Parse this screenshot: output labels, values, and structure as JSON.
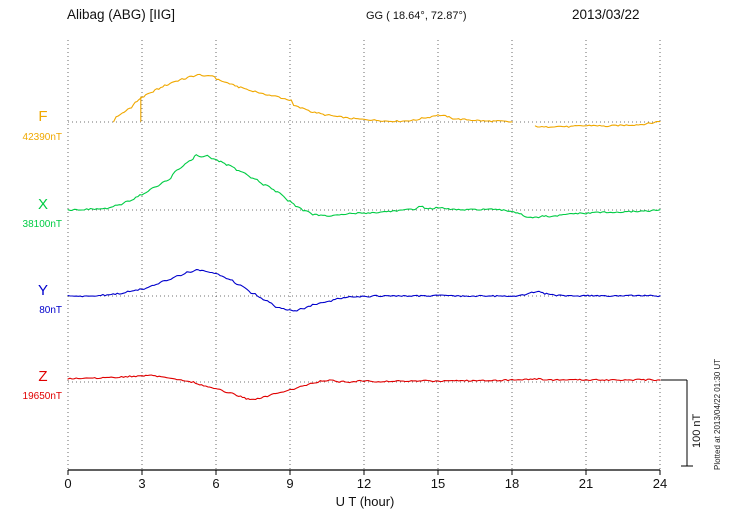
{
  "header": {
    "station": "Alibag (ABG)  [IIG]",
    "coordinates": "GG ( 18.64°,  72.87°)",
    "date": "2013/03/22"
  },
  "footer": {
    "xlabel": "U T (hour)"
  },
  "scale_bar": {
    "label": "100 nT",
    "nT": 100
  },
  "side_note": "Plotted at 2013/04/22 01:30 UT",
  "chart_data": {
    "type": "line",
    "title": "Alibag (ABG) [IIG] magnetogram 2013/03/22",
    "xlabel": "U T (hour)",
    "x_range": [
      0,
      24
    ],
    "x_ticks": [
      0,
      3,
      6,
      9,
      12,
      15,
      18,
      21,
      24
    ],
    "grid": "dotted vertical lines every 3 h; dotted horizontal baseline per component",
    "legend_position": "left margin labels",
    "scale_bar_nT": 100,
    "units": "nT relative to each component baseline",
    "series": [
      {
        "name": "F",
        "baseline_label": "42390nT",
        "baseline_nT": 42390,
        "color": "#f0a800",
        "segments": [
          [
            [
              1.85,
              0
            ],
            [
              1.95,
              6
            ],
            [
              2.2,
              10
            ],
            [
              2.5,
              16
            ],
            [
              2.8,
              24
            ],
            [
              3.0,
              29
            ],
            [
              3.3,
              33
            ],
            [
              3.6,
              38
            ],
            [
              4.0,
              43
            ],
            [
              4.3,
              47
            ],
            [
              4.7,
              50
            ],
            [
              5.0,
              53
            ],
            [
              5.35,
              55
            ],
            [
              5.6,
              53
            ],
            [
              5.85,
              54
            ],
            [
              6.1,
              49
            ],
            [
              6.4,
              46
            ],
            [
              6.7,
              43
            ],
            [
              7.0,
              40
            ],
            [
              7.5,
              36
            ],
            [
              8.0,
              32
            ],
            [
              8.4,
              30
            ],
            [
              8.8,
              27
            ],
            [
              9.05,
              25
            ],
            [
              9.15,
              19
            ],
            [
              9.5,
              16
            ],
            [
              10.0,
              11
            ],
            [
              10.5,
              8
            ],
            [
              11.0,
              6
            ],
            [
              11.5,
              4
            ],
            [
              12.0,
              3
            ],
            [
              12.5,
              2
            ],
            [
              13.0,
              1
            ],
            [
              13.5,
              1
            ],
            [
              14.0,
              2
            ],
            [
              14.5,
              5
            ],
            [
              15.0,
              8
            ],
            [
              15.3,
              7
            ],
            [
              15.6,
              4
            ],
            [
              16.0,
              3
            ],
            [
              16.5,
              2
            ],
            [
              17.0,
              1
            ],
            [
              17.5,
              1
            ],
            [
              18.0,
              0
            ]
          ],
          [
            [
              2.95,
              29
            ],
            [
              2.95,
              0
            ]
          ],
          [
            [
              18.95,
              -5
            ],
            [
              19.3,
              -6
            ],
            [
              19.8,
              -5
            ],
            [
              20.3,
              -5.5
            ],
            [
              20.8,
              -4.5
            ],
            [
              21.3,
              -4
            ],
            [
              21.8,
              -5
            ],
            [
              22.3,
              -4
            ],
            [
              22.8,
              -3.5
            ],
            [
              23.2,
              -3
            ],
            [
              23.6,
              -1.5
            ],
            [
              24,
              1
            ]
          ]
        ]
      },
      {
        "name": "X",
        "baseline_label": "38100nT",
        "baseline_nT": 38100,
        "color": "#00cc44",
        "segments": [
          [
            [
              0,
              0
            ],
            [
              0.5,
              0.5
            ],
            [
              1,
              1
            ],
            [
              1.5,
              1.5
            ],
            [
              2,
              5
            ],
            [
              2.5,
              11
            ],
            [
              3,
              18
            ],
            [
              3.5,
              26
            ],
            [
              4,
              34
            ],
            [
              4.5,
              48
            ],
            [
              5,
              58
            ],
            [
              5.2,
              64
            ],
            [
              5.4,
              61
            ],
            [
              5.65,
              63
            ],
            [
              5.9,
              59
            ],
            [
              6.2,
              56
            ],
            [
              6.5,
              52
            ],
            [
              7,
              45
            ],
            [
              7.5,
              37
            ],
            [
              8,
              29
            ],
            [
              8.5,
              21
            ],
            [
              9,
              10
            ],
            [
              9.3,
              4
            ],
            [
              9.6,
              -1
            ],
            [
              10,
              -5.5
            ],
            [
              10.5,
              -7
            ],
            [
              11,
              -6
            ],
            [
              11.5,
              -4
            ],
            [
              12,
              -3.5
            ],
            [
              12.5,
              -3
            ],
            [
              13,
              -1.5
            ],
            [
              13.5,
              -0.5
            ],
            [
              14,
              1
            ],
            [
              14.3,
              4
            ],
            [
              14.6,
              1.5
            ],
            [
              15,
              2.5
            ],
            [
              15.5,
              1
            ],
            [
              16,
              0
            ],
            [
              16.5,
              0.5
            ],
            [
              17,
              1
            ],
            [
              17.5,
              0
            ],
            [
              18,
              -1.5
            ],
            [
              18.3,
              -4
            ],
            [
              18.6,
              -8
            ],
            [
              19,
              -9
            ],
            [
              19.3,
              -7
            ],
            [
              19.6,
              -8
            ],
            [
              20,
              -6
            ],
            [
              20.5,
              -4
            ],
            [
              21,
              -4
            ],
            [
              21.5,
              -2.5
            ],
            [
              22,
              -3
            ],
            [
              22.5,
              -2.5
            ],
            [
              23,
              -1.5
            ],
            [
              23.5,
              -1
            ],
            [
              24,
              0
            ]
          ]
        ]
      },
      {
        "name": "Y",
        "baseline_label": "80nT",
        "baseline_nT": 80,
        "color": "#0000cc",
        "segments": [
          [
            [
              0,
              0
            ],
            [
              0.5,
              -0.5
            ],
            [
              1,
              0
            ],
            [
              1.5,
              1
            ],
            [
              2,
              2.5
            ],
            [
              2.5,
              5
            ],
            [
              3,
              8
            ],
            [
              3.5,
              13
            ],
            [
              4,
              18
            ],
            [
              4.5,
              24
            ],
            [
              4.9,
              28
            ],
            [
              5.2,
              30
            ],
            [
              5.5,
              29
            ],
            [
              6,
              26
            ],
            [
              6.5,
              20
            ],
            [
              7,
              12
            ],
            [
              7.5,
              3
            ],
            [
              8,
              -5
            ],
            [
              8.5,
              -13
            ],
            [
              8.9,
              -16
            ],
            [
              9.2,
              -17
            ],
            [
              9.5,
              -15
            ],
            [
              10,
              -10
            ],
            [
              10.5,
              -7
            ],
            [
              11,
              -2.5
            ],
            [
              11.5,
              -1
            ],
            [
              12,
              -0.5
            ],
            [
              12.5,
              0
            ],
            [
              13,
              0
            ],
            [
              14,
              0
            ],
            [
              15,
              0.5
            ],
            [
              16,
              0
            ],
            [
              17,
              0
            ],
            [
              18,
              0
            ],
            [
              18.5,
              1
            ],
            [
              18.8,
              4
            ],
            [
              19.1,
              5
            ],
            [
              19.4,
              2.5
            ],
            [
              19.8,
              0.5
            ],
            [
              20.5,
              0
            ],
            [
              21,
              0.5
            ],
            [
              22,
              0
            ],
            [
              23,
              0.5
            ],
            [
              24,
              0
            ]
          ]
        ]
      },
      {
        "name": "Z",
        "baseline_label": "19650nT",
        "baseline_nT": 19650,
        "color": "#e00000",
        "segments": [
          [
            [
              0,
              4
            ],
            [
              0.5,
              4
            ],
            [
              1,
              4.5
            ],
            [
              1.5,
              5
            ],
            [
              2,
              5.5
            ],
            [
              2.5,
              6.5
            ],
            [
              3,
              7
            ],
            [
              3.3,
              8
            ],
            [
              3.7,
              6.5
            ],
            [
              4,
              5
            ],
            [
              4.5,
              2.5
            ],
            [
              5,
              0
            ],
            [
              5.5,
              -4
            ],
            [
              6,
              -8
            ],
            [
              6.5,
              -12
            ],
            [
              7,
              -17
            ],
            [
              7.3,
              -20
            ],
            [
              7.6,
              -20
            ],
            [
              8,
              -17
            ],
            [
              8.5,
              -13
            ],
            [
              9,
              -9
            ],
            [
              9.5,
              -5
            ],
            [
              10,
              -0.5
            ],
            [
              10.3,
              1.5
            ],
            [
              10.6,
              2
            ],
            [
              11,
              0.5
            ],
            [
              11.5,
              0
            ],
            [
              12,
              1.5
            ],
            [
              12.5,
              0.5
            ],
            [
              13,
              0.5
            ],
            [
              13.5,
              1
            ],
            [
              14,
              1
            ],
            [
              14.5,
              1.5
            ],
            [
              15,
              1
            ],
            [
              15.5,
              2
            ],
            [
              16,
              1.5
            ],
            [
              16.5,
              1.5
            ],
            [
              17,
              2
            ],
            [
              17.5,
              2
            ],
            [
              18,
              2.5
            ],
            [
              18.5,
              3
            ],
            [
              19,
              3.5
            ],
            [
              19.5,
              2.5
            ],
            [
              20,
              2.5
            ],
            [
              20.5,
              2.5
            ],
            [
              21,
              2.5
            ],
            [
              21.5,
              2.5
            ],
            [
              22,
              2.5
            ],
            [
              22.5,
              2.5
            ],
            [
              23,
              2.5
            ],
            [
              23.5,
              2.5
            ],
            [
              24,
              2.5
            ]
          ]
        ]
      }
    ]
  }
}
